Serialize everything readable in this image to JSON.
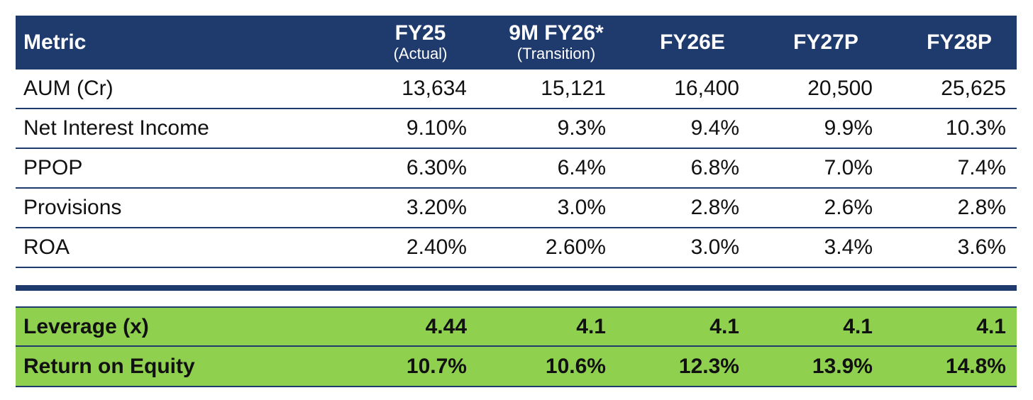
{
  "header": {
    "metric": "Metric",
    "columns": [
      {
        "label": "FY25",
        "sub": "(Actual)"
      },
      {
        "label": "9M FY26*",
        "sub": "(Transition)"
      },
      {
        "label": "FY26E",
        "sub": ""
      },
      {
        "label": "FY27P",
        "sub": ""
      },
      {
        "label": "FY28P",
        "sub": ""
      }
    ]
  },
  "rows": [
    {
      "metric": "AUM (Cr)",
      "values": [
        "13,634",
        "15,121",
        "16,400",
        "20,500",
        "25,625"
      ]
    },
    {
      "metric": "Net Interest Income",
      "values": [
        "9.10%",
        "9.3%",
        "9.4%",
        "9.9%",
        "10.3%"
      ]
    },
    {
      "metric": "PPOP",
      "values": [
        "6.30%",
        "6.4%",
        "6.8%",
        "7.0%",
        "7.4%"
      ]
    },
    {
      "metric": "Provisions",
      "values": [
        "3.20%",
        "3.0%",
        "2.8%",
        "2.6%",
        "2.8%"
      ]
    },
    {
      "metric": "ROA",
      "values": [
        "2.40%",
        "2.60%",
        "3.0%",
        "3.4%",
        "3.6%"
      ]
    }
  ],
  "highlight_rows": [
    {
      "metric": "Leverage (x)",
      "values": [
        "4.44",
        "4.1",
        "4.1",
        "4.1",
        "4.1"
      ]
    },
    {
      "metric": "Return on Equity",
      "values": [
        "10.7%",
        "10.6%",
        "12.3%",
        "13.9%",
        "14.8%"
      ]
    }
  ],
  "colors": {
    "header": "#1f3a6d",
    "highlight": "#8fd14f"
  }
}
